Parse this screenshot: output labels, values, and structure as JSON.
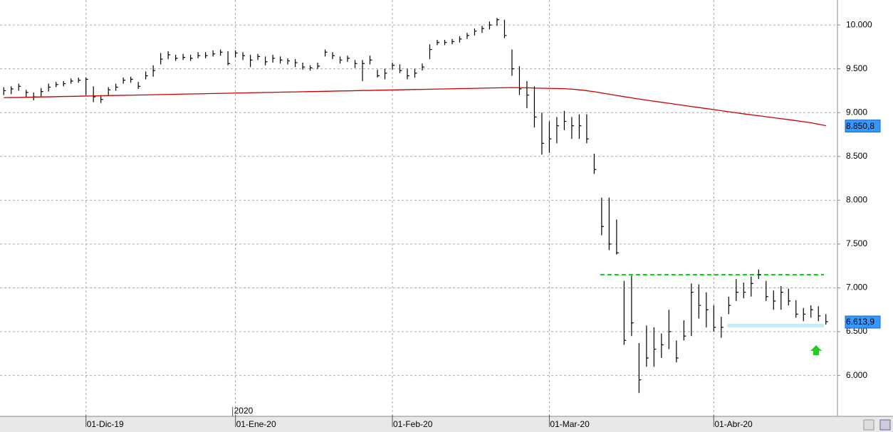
{
  "chart_data": {
    "type": "ohlc",
    "categories": [
      null,
      null,
      null,
      null,
      null,
      null,
      null,
      null,
      null,
      null,
      null,
      "01-Dic-19",
      null,
      null,
      null,
      null,
      null,
      null,
      null,
      null,
      null,
      null,
      null,
      null,
      null,
      null,
      null,
      null,
      null,
      null,
      null,
      "01-Ene-20",
      null,
      null,
      null,
      null,
      null,
      null,
      null,
      null,
      null,
      null,
      null,
      null,
      null,
      null,
      null,
      null,
      null,
      null,
      null,
      null,
      "01-Feb-20",
      null,
      null,
      null,
      null,
      null,
      null,
      null,
      null,
      null,
      null,
      null,
      null,
      null,
      null,
      null,
      null,
      null,
      null,
      null,
      null,
      "01-Mar-20",
      null,
      null,
      null,
      null,
      null,
      null,
      null,
      null,
      null,
      null,
      null,
      null,
      null,
      null,
      null,
      null,
      null,
      null,
      null,
      null,
      null,
      "01-Abr-20",
      null,
      null,
      null,
      null,
      null,
      null,
      null,
      null,
      null,
      null,
      null,
      null,
      null,
      null,
      null
    ],
    "year_marker": {
      "index": 31,
      "label": "2020"
    },
    "ylim": [
      5550,
      10285
    ],
    "yticks": [
      {
        "value": 6000,
        "label": "6.000"
      },
      {
        "value": 6500,
        "label": "6.500"
      },
      {
        "value": 7000,
        "label": "7.000"
      },
      {
        "value": 7500,
        "label": "7.500"
      },
      {
        "value": 8000,
        "label": "8.000"
      },
      {
        "value": 8500,
        "label": "8.500"
      },
      {
        "value": 9000,
        "label": "9.000"
      },
      {
        "value": 9500,
        "label": "9.500"
      },
      {
        "value": 10000,
        "label": "10.000"
      }
    ],
    "grid": true,
    "series": [
      {
        "color": "#000000",
        "high": [
          9290,
          9300,
          9330,
          9260,
          9230,
          9280,
          9330,
          9350,
          9360,
          9390,
          9400,
          9400,
          9300,
          9200,
          9290,
          9330,
          9400,
          9410,
          9350,
          9470,
          9540,
          9680,
          9700,
          9660,
          9670,
          9660,
          9690,
          9690,
          9710,
          9720,
          9700,
          9710,
          9690,
          9660,
          9670,
          9640,
          9660,
          9640,
          9620,
          9610,
          9570,
          9540,
          9570,
          9720,
          9690,
          9640,
          9650,
          9600,
          9600,
          9650,
          9490,
          9500,
          9570,
          9550,
          9500,
          9500,
          9560,
          9780,
          9830,
          9830,
          9840,
          9870,
          9910,
          9960,
          9990,
          10040,
          10080,
          10060,
          9720,
          9530,
          9360,
          9300,
          9000,
          8900,
          8950,
          9020,
          8950,
          8980,
          8980,
          8530,
          8030,
          8030,
          7780,
          7080,
          7140,
          6370,
          6570,
          6550,
          6480,
          6750,
          6400,
          6630,
          7050,
          7040,
          6950,
          6800,
          6670,
          6900,
          7100,
          7060,
          7130,
          7210,
          7080,
          6970,
          7020,
          6990,
          6860,
          6770,
          6800,
          6790,
          6700
        ],
        "low": [
          9200,
          9210,
          9250,
          9180,
          9140,
          9180,
          9240,
          9290,
          9300,
          9330,
          9340,
          9200,
          9120,
          9110,
          9200,
          9250,
          9330,
          9340,
          9270,
          9380,
          9410,
          9550,
          9610,
          9590,
          9600,
          9590,
          9620,
          9620,
          9640,
          9650,
          9540,
          9630,
          9600,
          9520,
          9600,
          9540,
          9570,
          9560,
          9550,
          9520,
          9490,
          9480,
          9500,
          9640,
          9610,
          9560,
          9580,
          9510,
          9360,
          9550,
          9400,
          9380,
          9490,
          9450,
          9380,
          9400,
          9480,
          9610,
          9770,
          9770,
          9780,
          9800,
          9840,
          9880,
          9910,
          9950,
          9990,
          9850,
          9420,
          9200,
          9050,
          8830,
          8520,
          8540,
          8650,
          8800,
          8700,
          8700,
          8650,
          8300,
          7600,
          7430,
          7380,
          6350,
          6450,
          5800,
          6100,
          6100,
          6200,
          6300,
          6150,
          6400,
          6450,
          6650,
          6550,
          6500,
          6430,
          6700,
          6850,
          6880,
          6900,
          7100,
          6850,
          6750,
          6750,
          6800,
          6660,
          6620,
          6660,
          6620,
          6580
        ],
        "close": [
          9250,
          9270,
          9300,
          9230,
          9180,
          9240,
          9290,
          9320,
          9330,
          9360,
          9370,
          9380,
          9180,
          9150,
          9260,
          9290,
          9370,
          9380,
          9300,
          9420,
          9480,
          9610,
          9660,
          9620,
          9630,
          9620,
          9650,
          9650,
          9670,
          9690,
          9560,
          9680,
          9650,
          9600,
          9640,
          9580,
          9620,
          9600,
          9590,
          9570,
          9520,
          9510,
          9530,
          9690,
          9650,
          9600,
          9620,
          9560,
          9560,
          9600,
          9420,
          9450,
          9540,
          9480,
          9420,
          9450,
          9520,
          9720,
          9800,
          9800,
          9810,
          9840,
          9880,
          9930,
          9960,
          10000,
          10060,
          9880,
          9500,
          9270,
          9200,
          8950,
          8650,
          8700,
          8850,
          8900,
          8850,
          8850,
          8700,
          8350,
          7700,
          7500,
          7400,
          6400,
          6600,
          5950,
          6200,
          6300,
          6350,
          6500,
          6200,
          6450,
          6950,
          6800,
          6750,
          6550,
          6550,
          6800,
          6950,
          6950,
          7050,
          7150,
          6900,
          6850,
          6950,
          6850,
          6700,
          6700,
          6750,
          6680,
          6613.9
        ],
        "value_labels": {
          "110": "6.613,9"
        }
      },
      {
        "color": "#cc0000",
        "values": [
          9170,
          9172,
          9173,
          9175,
          9177,
          9179,
          9180,
          9182,
          9184,
          9185,
          9187,
          9189,
          9190,
          9192,
          9194,
          9196,
          9197,
          9199,
          9201,
          9202,
          9204,
          9206,
          9207,
          9209,
          9211,
          9213,
          9214,
          9216,
          9218,
          9219,
          9221,
          9223,
          9224,
          9226,
          9228,
          9230,
          9231,
          9233,
          9235,
          9236,
          9238,
          9240,
          9241,
          9243,
          9245,
          9247,
          9248,
          9250,
          9252,
          9253,
          9255,
          9257,
          9258,
          9260,
          9262,
          9264,
          9265,
          9267,
          9269,
          9270,
          9272,
          9274,
          9275,
          9277,
          9279,
          9281,
          9282,
          9284,
          9286,
          9285,
          9283,
          9280,
          9278,
          9276,
          9275,
          9273,
          9268,
          9260,
          9250,
          9238,
          9224,
          9210,
          9196,
          9182,
          9168,
          9155,
          9142,
          9130,
          9118,
          9106,
          9094,
          9082,
          9070,
          9058,
          9046,
          9034,
          9022,
          9010,
          8998,
          8986,
          8975,
          8964,
          8953,
          8942,
          8931,
          8920,
          8908,
          8896,
          8884,
          8868,
          8850.8
        ],
        "value_labels": {
          "110": "8.850,8"
        }
      }
    ],
    "levels": [
      {
        "value": 7150,
        "color": "#00dd00",
        "style": "dashed"
      },
      {
        "value": 6570,
        "color": "#b8f0f8",
        "style": "band"
      }
    ],
    "signal": {
      "color": "#22cc22"
    }
  }
}
